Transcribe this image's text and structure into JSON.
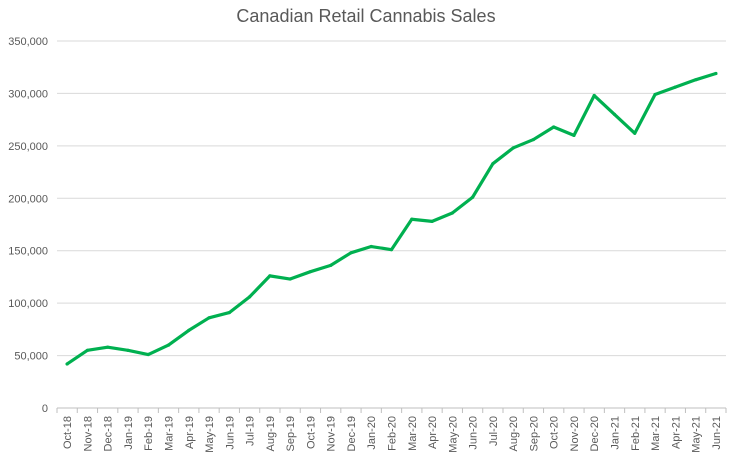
{
  "chart_data": {
    "type": "line",
    "title": "Canadian Retail Cannabis Sales",
    "xlabel": "",
    "ylabel": "",
    "ylim": [
      0,
      350000
    ],
    "y_ticks": [
      0,
      50000,
      100000,
      150000,
      200000,
      250000,
      300000,
      350000
    ],
    "y_tick_labels": [
      "0",
      "50,000",
      "100,000",
      "150,000",
      "200,000",
      "250,000",
      "300,000",
      "350,000"
    ],
    "grid": true,
    "legend": "none",
    "line_color": "#00B050",
    "categories": [
      "Oct-18",
      "Nov-18",
      "Dec-18",
      "Jan-19",
      "Feb-19",
      "Mar-19",
      "Apr-19",
      "May-19",
      "Jun-19",
      "Jul-19",
      "Aug-19",
      "Sep-19",
      "Oct-19",
      "Nov-19",
      "Dec-19",
      "Jan-20",
      "Feb-20",
      "Mar-20",
      "Apr-20",
      "May-20",
      "Jun-20",
      "Jul-20",
      "Aug-20",
      "Sep-20",
      "Oct-20",
      "Nov-20",
      "Dec-20",
      "Jan-21",
      "Feb-21",
      "Mar-21",
      "Apr-21",
      "May-21",
      "Jun-21"
    ],
    "series": [
      {
        "name": "Sales",
        "values": [
          42000,
          55000,
          58000,
          55000,
          51000,
          60000,
          74000,
          86000,
          91000,
          106000,
          126000,
          123000,
          130000,
          136000,
          148000,
          154000,
          151000,
          180000,
          178000,
          186000,
          201000,
          233000,
          248000,
          256000,
          268000,
          260000,
          298000,
          280000,
          262000,
          299000,
          306000,
          313000,
          319000
        ]
      }
    ]
  }
}
